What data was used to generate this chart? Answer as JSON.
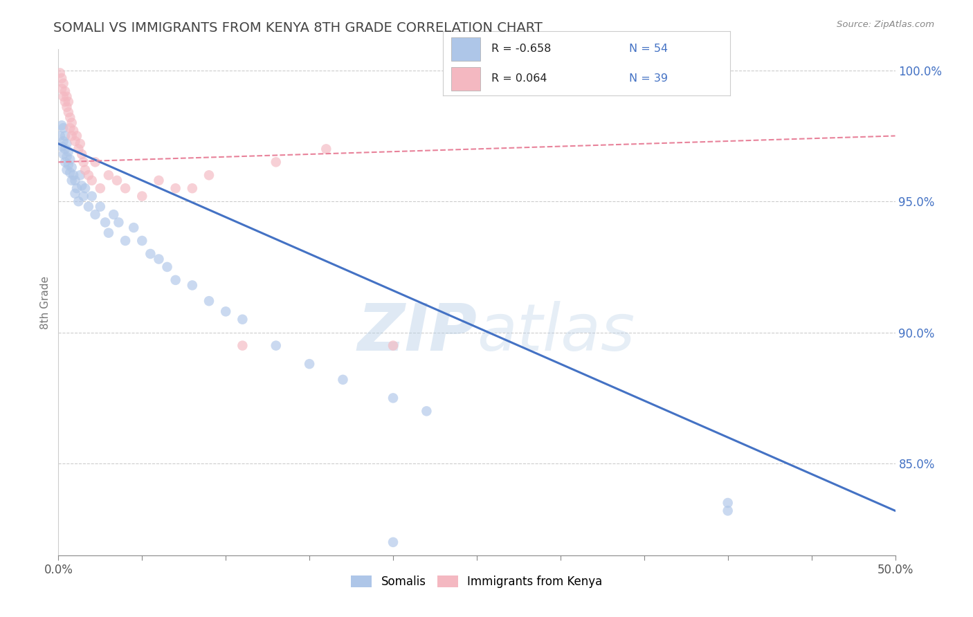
{
  "title": "SOMALI VS IMMIGRANTS FROM KENYA 8TH GRADE CORRELATION CHART",
  "source": "Source: ZipAtlas.com",
  "ylabel": "8th Grade",
  "ylabel_right": [
    "100.0%",
    "95.0%",
    "90.0%",
    "85.0%"
  ],
  "ylabel_right_values": [
    1.0,
    0.95,
    0.9,
    0.85
  ],
  "legend_entries": [
    {
      "color": "#aec6e8",
      "label": "Somalis",
      "R": "-0.658",
      "N": "54"
    },
    {
      "color": "#f4b8c1",
      "label": "Immigrants from Kenya",
      "R": "0.064",
      "N": "39"
    }
  ],
  "blue_scatter_x": [
    0.001,
    0.002,
    0.002,
    0.003,
    0.003,
    0.003,
    0.004,
    0.004,
    0.004,
    0.005,
    0.005,
    0.005,
    0.006,
    0.006,
    0.007,
    0.007,
    0.008,
    0.008,
    0.009,
    0.01,
    0.01,
    0.011,
    0.012,
    0.013,
    0.014,
    0.015,
    0.016,
    0.018,
    0.02,
    0.022,
    0.025,
    0.028,
    0.03,
    0.033,
    0.036,
    0.04,
    0.045,
    0.05,
    0.055,
    0.06,
    0.065,
    0.07,
    0.08,
    0.09,
    0.1,
    0.11,
    0.13,
    0.15,
    0.17,
    0.2,
    0.22,
    0.4,
    0.2,
    0.4
  ],
  "blue_scatter_y": [
    0.975,
    0.979,
    0.971,
    0.978,
    0.973,
    0.968,
    0.975,
    0.97,
    0.965,
    0.972,
    0.967,
    0.962,
    0.969,
    0.964,
    0.966,
    0.961,
    0.963,
    0.958,
    0.96,
    0.958,
    0.953,
    0.955,
    0.95,
    0.96,
    0.956,
    0.952,
    0.955,
    0.948,
    0.952,
    0.945,
    0.948,
    0.942,
    0.938,
    0.945,
    0.942,
    0.935,
    0.94,
    0.935,
    0.93,
    0.928,
    0.925,
    0.92,
    0.918,
    0.912,
    0.908,
    0.905,
    0.895,
    0.888,
    0.882,
    0.875,
    0.87,
    0.832,
    0.82,
    0.835
  ],
  "pink_scatter_x": [
    0.001,
    0.002,
    0.002,
    0.003,
    0.003,
    0.004,
    0.004,
    0.005,
    0.005,
    0.006,
    0.006,
    0.007,
    0.007,
    0.008,
    0.008,
    0.009,
    0.01,
    0.011,
    0.012,
    0.013,
    0.014,
    0.015,
    0.016,
    0.018,
    0.02,
    0.022,
    0.025,
    0.03,
    0.035,
    0.04,
    0.05,
    0.06,
    0.07,
    0.08,
    0.09,
    0.11,
    0.13,
    0.16,
    0.2
  ],
  "pink_scatter_y": [
    0.999,
    0.997,
    0.993,
    0.995,
    0.99,
    0.992,
    0.988,
    0.99,
    0.986,
    0.988,
    0.984,
    0.982,
    0.978,
    0.98,
    0.975,
    0.977,
    0.973,
    0.975,
    0.97,
    0.972,
    0.968,
    0.965,
    0.962,
    0.96,
    0.958,
    0.965,
    0.955,
    0.96,
    0.958,
    0.955,
    0.952,
    0.958,
    0.955,
    0.955,
    0.96,
    0.895,
    0.965,
    0.97,
    0.895
  ],
  "blue_line_x": [
    0.0,
    0.5
  ],
  "blue_line_y": [
    0.972,
    0.832
  ],
  "pink_line_x": [
    0.0,
    0.5
  ],
  "pink_line_y": [
    0.965,
    0.975
  ],
  "xmin": 0.0,
  "xmax": 0.5,
  "ymin": 0.815,
  "ymax": 1.008,
  "watermark_part1": "ZIP",
  "watermark_part2": "atlas",
  "background_color": "#ffffff",
  "grid_color": "#cccccc",
  "title_color": "#444444",
  "blue_dot_color": "#aec6e8",
  "pink_dot_color": "#f4b8c1",
  "blue_line_color": "#4472c4",
  "pink_line_color": "#e8829a",
  "dot_size": 110,
  "dot_alpha": 0.65,
  "x_tick_positions": [
    0.0,
    0.05,
    0.1,
    0.15,
    0.2,
    0.25,
    0.3,
    0.35,
    0.4,
    0.45,
    0.5
  ]
}
